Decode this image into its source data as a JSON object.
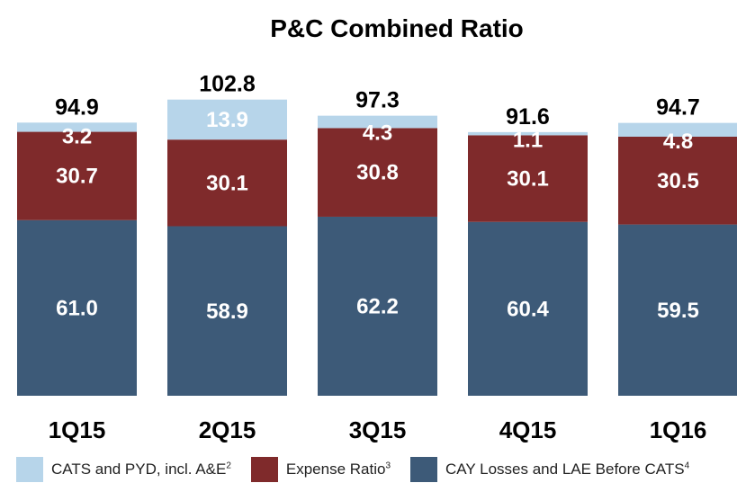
{
  "chart_data": {
    "type": "bar",
    "stacked": true,
    "title": "P&C Combined Ratio",
    "categories": [
      "1Q15",
      "2Q15",
      "3Q15",
      "4Q15",
      "1Q16"
    ],
    "totals": [
      "94.9",
      "102.8",
      "97.3",
      "91.6",
      "94.7"
    ],
    "series": [
      {
        "name": "CAY Losses and LAE Before CATS",
        "sup": "4",
        "color": "#3d5a78",
        "values": [
          61.0,
          58.9,
          62.2,
          60.4,
          59.5
        ],
        "labels": [
          "61.0",
          "58.9",
          "62.2",
          "60.4",
          "59.5"
        ]
      },
      {
        "name": "Expense Ratio",
        "sup": "3",
        "color": "#7f2a2b",
        "values": [
          30.7,
          30.1,
          30.8,
          30.1,
          30.5
        ],
        "labels": [
          "30.7",
          "30.1",
          "30.8",
          "30.1",
          "30.5"
        ]
      },
      {
        "name": "CATS and PYD, incl. A&E",
        "sup": "2",
        "color": "#b7d5ea",
        "values": [
          3.2,
          13.9,
          4.3,
          1.1,
          4.8
        ],
        "labels": [
          "3.2",
          "13.9",
          "4.3",
          "1.1",
          "4.8"
        ]
      }
    ],
    "ylim": [
      0,
      120
    ],
    "grid": false,
    "legend": "bottom"
  }
}
